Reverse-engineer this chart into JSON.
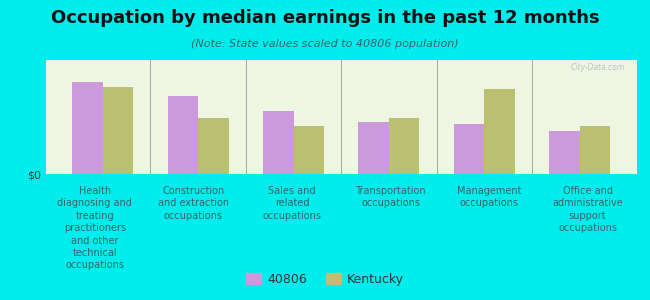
{
  "title": "Occupation by median earnings in the past 12 months",
  "subtitle": "(Note: State values scaled to 40806 population)",
  "background_color": "#00eded",
  "plot_bg_color": "#eef5e0",
  "categories": [
    "Health\ndiagnosing and\ntreating\npractitioners\nand other\ntechnical\noccupations",
    "Construction\nand extraction\noccupations",
    "Sales and\nrelated\noccupations",
    "Transportation\noccupations",
    "Management\noccupations",
    "Office and\nadministrative\nsupport\noccupations"
  ],
  "values_40806": [
    0.85,
    0.72,
    0.58,
    0.48,
    0.46,
    0.4
  ],
  "values_kentucky": [
    0.8,
    0.52,
    0.44,
    0.52,
    0.78,
    0.44
  ],
  "color_40806": "#cc99dd",
  "color_kentucky": "#bbbf72",
  "bar_width": 0.32,
  "ylabel": "$0",
  "legend_40806": "40806",
  "legend_kentucky": "Kentucky",
  "watermark": "City-Data.com",
  "title_fontsize": 13,
  "subtitle_fontsize": 8,
  "xlabel_fontsize": 7,
  "legend_fontsize": 9
}
